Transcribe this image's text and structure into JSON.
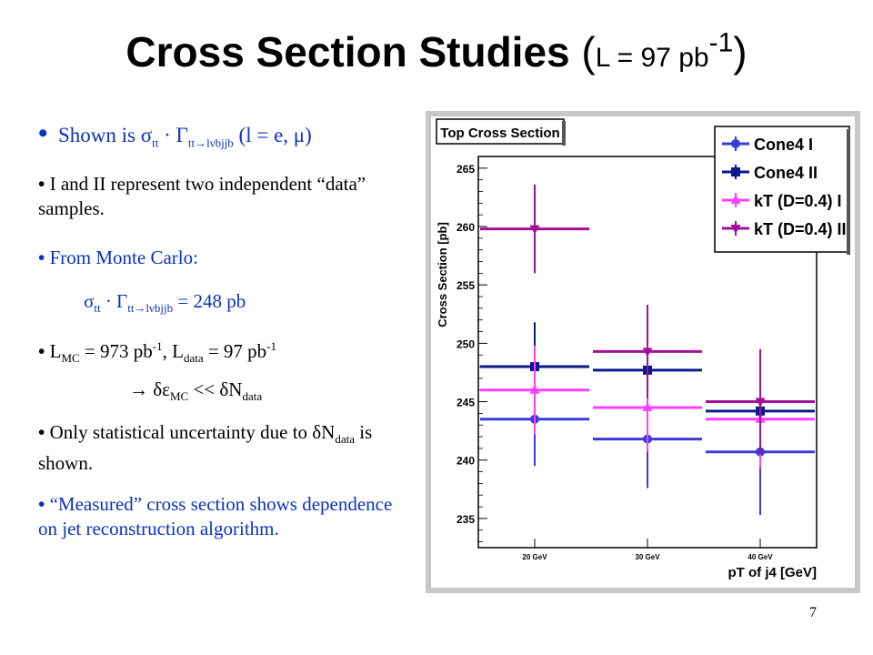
{
  "slide": {
    "title_main": "Cross Section Studies",
    "title_paren_open": "(",
    "title_lumi": "L = 97 pb",
    "title_lumi_sup": "-1",
    "title_paren_close": ")",
    "page_number": "7"
  },
  "bullets": {
    "b1": {
      "text": "Shown is σ",
      "sub1": "tt",
      "mid": " · Γ",
      "sub2": "tt→lνbjjb",
      "tail": " (l = e, μ)"
    },
    "b2": {
      "text": "I and II represent two independent “data” samples."
    },
    "b3": {
      "text": "From Monte Carlo:"
    },
    "b3_formula": {
      "text": "σ",
      "sub1": "tt",
      "mid": " · Γ",
      "sub2": "tt→lνbjjb",
      "tail": " = 248 pb"
    },
    "b4": {
      "l1": "L",
      "s1": "MC",
      "m1": " = 973 pb",
      "p1": "-1",
      "l2": ", L",
      "s2": "data",
      "m2": " = 97 pb",
      "p2": "-1"
    },
    "b4_formula": {
      "a": "→ δε",
      "s1": "MC",
      "b": " << δN",
      "s2": "data"
    },
    "b5": {
      "a": "Only statistical uncertainty due to δN",
      "s1": "data",
      "b": " is shown."
    },
    "b6": {
      "text": "“Measured” cross section shows dependence on jet reconstruction algorithm."
    }
  },
  "chart_data": {
    "type": "scatter",
    "title": "Top Cross Section",
    "xlabel": "pT of j4 [GeV]",
    "ylabel": "Cross Section [pb]",
    "categories": [
      "20 GeV",
      "30 GeV",
      "40 GeV"
    ],
    "ylim": [
      232.5,
      266
    ],
    "yticks": [
      235,
      240,
      245,
      250,
      255,
      260,
      265
    ],
    "legend_position": "top-right",
    "series": [
      {
        "name": "Cone4 I",
        "color": "#3b3bd8",
        "marker": "circle",
        "values": [
          243.5,
          241.8,
          240.7
        ],
        "errors": [
          4.0,
          4.2,
          5.4
        ]
      },
      {
        "name": "Cone4 II",
        "color": "#0a1a8c",
        "marker": "square",
        "values": [
          248.0,
          247.7,
          244.2
        ],
        "errors": [
          3.8,
          3.8,
          4.2
        ]
      },
      {
        "name": "kT (D=0.4) I",
        "color": "#ff40ff",
        "marker": "triangle-up",
        "values": [
          246.0,
          244.5,
          243.5
        ],
        "errors": [
          3.8,
          3.8,
          4.2
        ]
      },
      {
        "name": "kT (D=0.4) II",
        "color": "#a0109a",
        "marker": "triangle-down",
        "values": [
          259.8,
          249.3,
          245.0
        ],
        "errors": [
          3.8,
          4.0,
          4.5
        ]
      }
    ]
  }
}
